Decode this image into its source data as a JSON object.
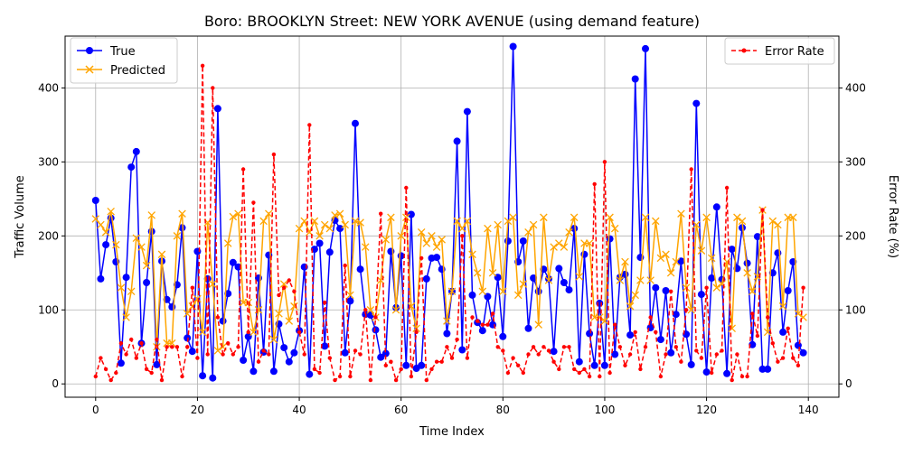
{
  "chart_data": {
    "type": "line",
    "title": "Boro: BROOKLYN Street: NEW YORK AVENUE (using demand feature)",
    "xlabel": "Time Index",
    "ylabel": "Traffic Volume",
    "y2label": "Error Rate (%)",
    "xlim": [
      -6,
      146
    ],
    "ylim": [
      -18,
      470
    ],
    "y2lim": [
      -18,
      470
    ],
    "x_ticks": [
      0,
      20,
      40,
      60,
      80,
      100,
      120,
      140
    ],
    "y_ticks": [
      0,
      100,
      200,
      300,
      400
    ],
    "y2_ticks": [
      0,
      100,
      200,
      300,
      400
    ],
    "grid": true,
    "legend_left": "top-left",
    "legend_right": "top-right",
    "series": [
      {
        "name": "True",
        "axis": "left",
        "color": "#0000ff",
        "marker": "circle",
        "values": [
          248,
          142,
          188,
          224,
          165,
          28,
          144,
          293,
          314,
          55,
          137,
          206,
          26,
          166,
          114,
          104,
          134,
          211,
          62,
          44,
          179,
          11,
          142,
          8,
          372,
          85,
          122,
          164,
          158,
          32,
          64,
          17,
          143,
          43,
          174,
          17,
          81,
          49,
          30,
          42,
          72,
          158,
          13,
          182,
          190,
          51,
          178,
          221,
          210,
          42,
          112,
          352,
          155,
          94,
          93,
          73,
          36,
          41,
          179,
          103,
          173,
          25,
          229,
          21,
          25,
          142,
          170,
          171,
          155,
          68,
          125,
          328,
          46,
          368,
          120,
          83,
          72,
          118,
          80,
          144,
          64,
          193,
          456,
          165,
          193,
          75,
          143,
          125,
          155,
          142,
          44,
          156,
          137,
          127,
          210,
          30,
          175,
          68,
          25,
          109,
          25,
          196,
          40,
          144,
          148,
          66,
          412,
          171,
          453,
          76,
          130,
          60,
          126,
          42,
          94,
          166,
          67,
          26,
          379,
          121,
          16,
          143,
          239,
          141,
          14,
          182,
          156,
          211,
          163,
          53,
          199,
          20,
          20,
          150,
          177,
          70,
          126,
          165,
          52,
          42
        ]
      },
      {
        "name": "Predicted",
        "axis": "left",
        "color": "#ffa500",
        "marker": "x",
        "values": [
          223,
          215,
          205,
          233,
          188,
          130,
          90,
          125,
          197,
          185,
          160,
          228,
          50,
          175,
          55,
          55,
          200,
          230,
          95,
          105,
          115,
          70,
          218,
          135,
          45,
          50,
          190,
          226,
          230,
          110,
          110,
          70,
          100,
          220,
          230,
          60,
          95,
          135,
          85,
          105,
          210,
          220,
          205,
          220,
          200,
          215,
          210,
          228,
          230,
          215,
          120,
          220,
          218,
          185,
          100,
          90,
          140,
          195,
          225,
          100,
          200,
          225,
          105,
          75,
          205,
          190,
          200,
          185,
          195,
          85,
          125,
          220,
          210,
          220,
          175,
          150,
          125,
          210,
          150,
          215,
          125,
          220,
          225,
          120,
          135,
          205,
          215,
          80,
          225,
          140,
          185,
          190,
          185,
          205,
          225,
          145,
          190,
          190,
          90,
          90,
          85,
          225,
          210,
          140,
          165,
          105,
          120,
          140,
          225,
          140,
          220,
          170,
          175,
          150,
          165,
          230,
          130,
          100,
          215,
          180,
          225,
          170,
          130,
          135,
          165,
          75,
          225,
          220,
          150,
          125,
          145,
          235,
          70,
          220,
          215,
          105,
          225,
          225,
          95,
          90
        ]
      },
      {
        "name": "Error Rate",
        "axis": "right",
        "color": "#ff0000",
        "marker": "dot",
        "linestyle": "dashed",
        "values": [
          10,
          35,
          20,
          5,
          15,
          55,
          40,
          60,
          35,
          55,
          20,
          15,
          60,
          5,
          50,
          50,
          50,
          10,
          50,
          130,
          35,
          430,
          40,
          400,
          90,
          40,
          55,
          40,
          50,
          290,
          70,
          245,
          30,
          45,
          40,
          310,
          120,
          130,
          140,
          125,
          70,
          40,
          350,
          20,
          15,
          110,
          35,
          5,
          10,
          160,
          10,
          45,
          40,
          100,
          5,
          90,
          230,
          25,
          30,
          5,
          20,
          265,
          10,
          70,
          170,
          5,
          20,
          30,
          30,
          50,
          35,
          60,
          200,
          35,
          90,
          85,
          80,
          80,
          95,
          50,
          45,
          15,
          35,
          25,
          15,
          40,
          50,
          40,
          50,
          45,
          30,
          20,
          50,
          50,
          20,
          15,
          20,
          10,
          270,
          10,
          300,
          15,
          80,
          50,
          25,
          40,
          70,
          20,
          50,
          90,
          70,
          10,
          40,
          125,
          50,
          30,
          100,
          290,
          45,
          35,
          130,
          15,
          40,
          45,
          265,
          5,
          40,
          10,
          10,
          95,
          65,
          235,
          90,
          55,
          30,
          35,
          75,
          35,
          25,
          130
        ]
      }
    ]
  }
}
